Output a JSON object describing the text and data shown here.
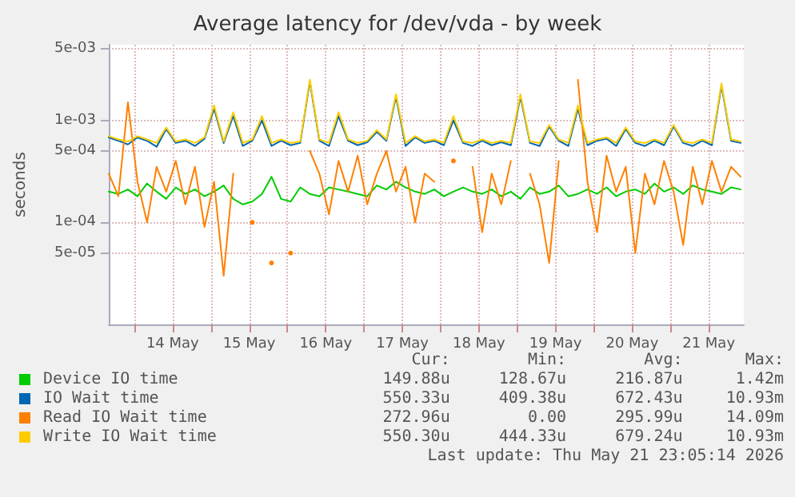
{
  "chart_data": {
    "type": "line",
    "title": "Average latency for /dev/vda - by week",
    "ylabel": "seconds",
    "x": [
      "2026-05-13T16:00",
      "2026-05-13T19:00",
      "2026-05-13T22:00",
      "2026-05-14T01:00",
      "2026-05-14T04:00",
      "2026-05-14T07:00",
      "2026-05-14T10:00",
      "2026-05-14T13:00",
      "2026-05-14T16:00",
      "2026-05-14T19:00",
      "2026-05-14T22:00",
      "2026-05-15T01:00",
      "2026-05-15T04:00",
      "2026-05-15T07:00",
      "2026-05-15T10:00",
      "2026-05-15T13:00",
      "2026-05-15T16:00",
      "2026-05-15T19:00",
      "2026-05-15T22:00",
      "2026-05-16T01:00",
      "2026-05-16T04:00",
      "2026-05-16T07:00",
      "2026-05-16T10:00",
      "2026-05-16T13:00",
      "2026-05-16T16:00",
      "2026-05-16T19:00",
      "2026-05-16T22:00",
      "2026-05-17T01:00",
      "2026-05-17T04:00",
      "2026-05-17T07:00",
      "2026-05-17T10:00",
      "2026-05-17T13:00",
      "2026-05-17T16:00",
      "2026-05-17T19:00",
      "2026-05-17T22:00",
      "2026-05-18T01:00",
      "2026-05-18T04:00",
      "2026-05-18T07:00",
      "2026-05-18T10:00",
      "2026-05-18T13:00",
      "2026-05-18T16:00",
      "2026-05-18T19:00",
      "2026-05-18T22:00",
      "2026-05-19T01:00",
      "2026-05-19T04:00",
      "2026-05-19T07:00",
      "2026-05-19T10:00",
      "2026-05-19T13:00",
      "2026-05-19T16:00",
      "2026-05-19T19:00",
      "2026-05-19T22:00",
      "2026-05-20T01:00",
      "2026-05-20T04:00",
      "2026-05-20T07:00",
      "2026-05-20T10:00",
      "2026-05-20T13:00",
      "2026-05-20T16:00",
      "2026-05-20T19:00",
      "2026-05-20T22:00",
      "2026-05-21T01:00",
      "2026-05-21T04:00",
      "2026-05-21T07:00",
      "2026-05-21T10:00",
      "2026-05-21T13:00",
      "2026-05-21T16:00",
      "2026-05-21T19:00",
      "2026-05-21T22:00"
    ],
    "series": [
      {
        "name": "Device IO time",
        "color": "#00cc00",
        "values": [
          0.0002,
          0.00019,
          0.00021,
          0.00018,
          0.00024,
          0.0002,
          0.00017,
          0.00022,
          0.00019,
          0.00021,
          0.00018,
          0.0002,
          0.00023,
          0.00017,
          0.00015,
          0.00016,
          0.00019,
          0.00028,
          0.00017,
          0.00016,
          0.00022,
          0.00019,
          0.00018,
          0.00022,
          0.00021,
          0.0002,
          0.00019,
          0.00018,
          0.00023,
          0.00021,
          0.00025,
          0.00022,
          0.0002,
          0.00019,
          0.00021,
          0.00018,
          0.0002,
          0.00022,
          0.0002,
          0.00019,
          0.00021,
          0.00018,
          0.0002,
          0.00017,
          0.00022,
          0.00019,
          0.0002,
          0.00023,
          0.00018,
          0.00019,
          0.00021,
          0.00019,
          0.00022,
          0.00018,
          0.0002,
          0.00021,
          0.00019,
          0.00024,
          0.0002,
          0.00022,
          0.00019,
          0.00023,
          0.00021,
          0.0002,
          0.00019,
          0.00022,
          0.00021
        ]
      },
      {
        "name": "IO Wait time",
        "color": "#0066b3",
        "values": [
          0.00068,
          0.00063,
          0.00058,
          0.00068,
          0.00063,
          0.00055,
          0.00082,
          0.0006,
          0.00063,
          0.00056,
          0.00066,
          0.0013,
          0.0006,
          0.0011,
          0.00056,
          0.00063,
          0.001,
          0.00056,
          0.00063,
          0.00057,
          0.0006,
          0.0024,
          0.00063,
          0.00056,
          0.0011,
          0.00063,
          0.00057,
          0.00061,
          0.00077,
          0.00063,
          0.0017,
          0.00056,
          0.00068,
          0.0006,
          0.00063,
          0.00057,
          0.001,
          0.0006,
          0.00056,
          0.00063,
          0.00057,
          0.00061,
          0.00057,
          0.0017,
          0.0006,
          0.00056,
          0.00087,
          0.00063,
          0.00056,
          0.0013,
          0.00057,
          0.00063,
          0.00066,
          0.00056,
          0.00082,
          0.0006,
          0.00056,
          0.00063,
          0.00057,
          0.00087,
          0.0006,
          0.00056,
          0.00063,
          0.00057,
          0.0022,
          0.00063,
          0.0006
        ]
      },
      {
        "name": "Read IO Wait time",
        "color": "#ff8000",
        "values": [
          0.0003,
          0.00018,
          0.0015,
          0.00025,
          0.0001,
          0.00035,
          0.0002,
          0.0004,
          0.00015,
          0.00035,
          9e-05,
          0.00025,
          3e-05,
          0.0003,
          null,
          0.0001,
          null,
          4e-05,
          null,
          5e-05,
          null,
          0.0005,
          0.0003,
          0.00012,
          0.0004,
          0.0002,
          0.00045,
          0.00015,
          0.0003,
          0.0005,
          0.0002,
          0.00035,
          0.0001,
          0.0003,
          0.00025,
          null,
          0.0004,
          null,
          0.00035,
          8e-05,
          0.0003,
          0.00015,
          0.0004,
          null,
          0.0003,
          0.00015,
          4e-05,
          0.0004,
          null,
          0.0025,
          0.00025,
          8e-05,
          0.00045,
          0.0002,
          0.00035,
          5e-05,
          0.0003,
          0.00015,
          0.0004,
          0.0002,
          6e-05,
          0.00035,
          0.00015,
          0.0004,
          0.0002,
          0.00035,
          0.00028
        ]
      },
      {
        "name": "Write IO Wait time",
        "color": "#ffcc00",
        "values": [
          0.0007,
          0.00065,
          0.00062,
          0.0007,
          0.00065,
          0.0006,
          0.00085,
          0.00062,
          0.00065,
          0.0006,
          0.00068,
          0.0014,
          0.00062,
          0.0012,
          0.0006,
          0.00065,
          0.0011,
          0.0006,
          0.00065,
          0.0006,
          0.00062,
          0.0025,
          0.00065,
          0.0006,
          0.0012,
          0.00065,
          0.0006,
          0.00063,
          0.0008,
          0.00065,
          0.0018,
          0.0006,
          0.0007,
          0.00062,
          0.00065,
          0.0006,
          0.0011,
          0.00062,
          0.0006,
          0.00065,
          0.0006,
          0.00063,
          0.0006,
          0.0018,
          0.00062,
          0.0006,
          0.0009,
          0.00065,
          0.0006,
          0.0014,
          0.0006,
          0.00065,
          0.00068,
          0.0006,
          0.00085,
          0.00062,
          0.0006,
          0.00065,
          0.0006,
          0.0009,
          0.00062,
          0.0006,
          0.00065,
          0.0006,
          0.0023,
          0.00065,
          0.00062
        ]
      }
    ],
    "xlim": [
      "2026-05-13T16:00",
      "2026-05-21T23:00"
    ],
    "xticks": [
      {
        "value": "2026-05-14T00:00",
        "label": null
      },
      {
        "value": "2026-05-14T12:00",
        "label": "14 May"
      },
      {
        "value": "2026-05-15T00:00",
        "label": null
      },
      {
        "value": "2026-05-15T12:00",
        "label": "15 May"
      },
      {
        "value": "2026-05-16T00:00",
        "label": null
      },
      {
        "value": "2026-05-16T12:00",
        "label": "16 May"
      },
      {
        "value": "2026-05-17T00:00",
        "label": null
      },
      {
        "value": "2026-05-17T12:00",
        "label": "17 May"
      },
      {
        "value": "2026-05-18T00:00",
        "label": null
      },
      {
        "value": "2026-05-18T12:00",
        "label": "18 May"
      },
      {
        "value": "2026-05-19T00:00",
        "label": null
      },
      {
        "value": "2026-05-19T12:00",
        "label": "19 May"
      },
      {
        "value": "2026-05-20T00:00",
        "label": null
      },
      {
        "value": "2026-05-20T12:00",
        "label": "20 May"
      },
      {
        "value": "2026-05-21T00:00",
        "label": null
      },
      {
        "value": "2026-05-21T12:00",
        "label": "21 May"
      }
    ],
    "ylim": [
      1e-05,
      0.0055
    ],
    "yticks": [
      {
        "value": 5e-05,
        "label": "5e-05"
      },
      {
        "value": 0.0001,
        "label": "1e-04"
      },
      {
        "value": 0.0005,
        "label": "5e-04"
      },
      {
        "value": 0.001,
        "label": "1e-03"
      },
      {
        "value": 0.005,
        "label": "5e-03"
      }
    ],
    "log": "y",
    "grid": true,
    "legend": "bottom",
    "marker": "none",
    "line_style": "solid",
    "annotations": [
      "Cur:",
      "Min:",
      "Avg:",
      "Max:",
      "149.88u",
      "128.67u",
      "216.87u",
      "1.42m",
      "550.33u",
      "409.38u",
      "672.43u",
      "10.93m",
      "272.96u",
      "0.00",
      "295.99u",
      "14.09m",
      "550.30u",
      "444.33u",
      "679.24u",
      "10.93m",
      "Last update: Thu May 21 23:05:14 2026"
    ]
  }
}
